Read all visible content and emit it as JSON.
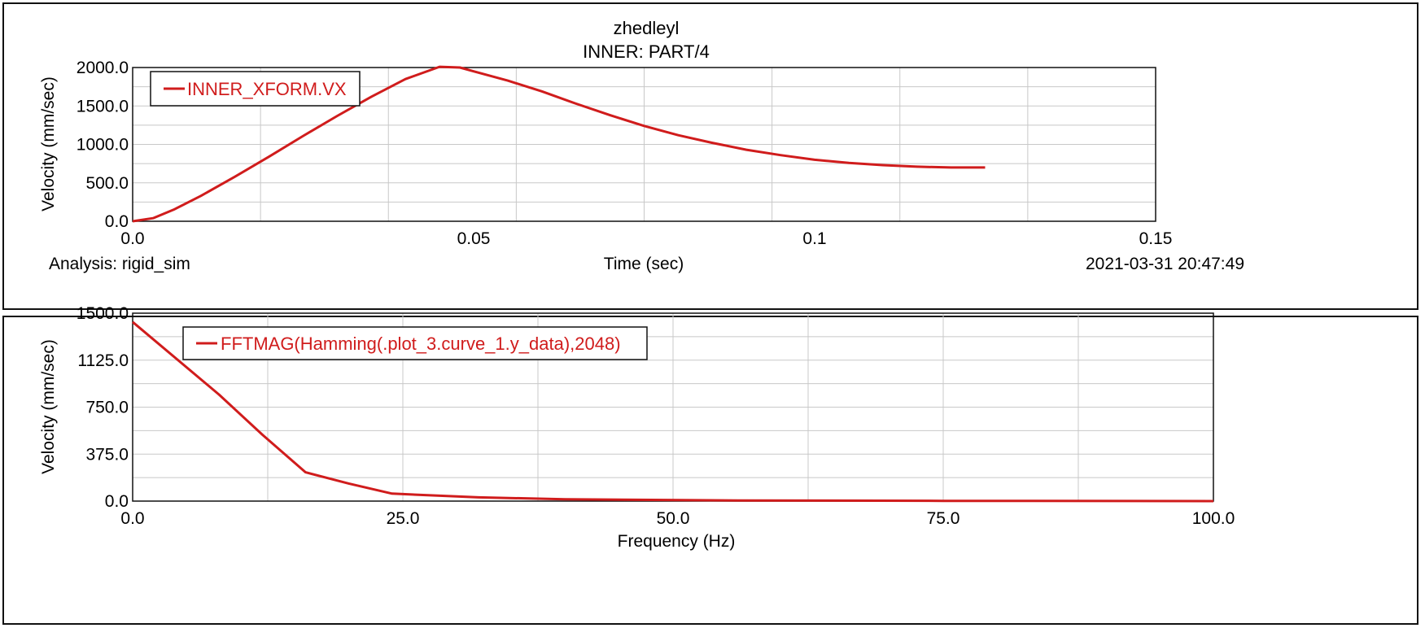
{
  "colors": {
    "curve": "#d01c1c",
    "grid": "#c8c8c8",
    "frame": "#111111",
    "background": "#ffffff"
  },
  "chart_data": [
    {
      "type": "line",
      "title": "zhedleyl",
      "subtitle": "INNER: PART/4",
      "xlabel": "Time (sec)",
      "ylabel": "Velocity (mm/sec)",
      "xlim": [
        0.0,
        0.15
      ],
      "ylim": [
        0.0,
        2000.0
      ],
      "x_ticks": [
        "0.0",
        "0.05",
        "0.1",
        "0.15"
      ],
      "y_ticks": [
        "0.0",
        "500.0",
        "1000.0",
        "1500.0",
        "2000.0"
      ],
      "grid": true,
      "legend_position": "top-left",
      "footer_left": "Analysis:  rigid_sim",
      "footer_right": "2021-03-31 20:47:49",
      "series": [
        {
          "name": "INNER_XFORM.VX",
          "x": [
            0.0,
            0.003,
            0.006,
            0.01,
            0.015,
            0.02,
            0.025,
            0.03,
            0.035,
            0.04,
            0.045,
            0.048,
            0.05,
            0.055,
            0.06,
            0.065,
            0.07,
            0.075,
            0.08,
            0.085,
            0.09,
            0.095,
            0.1,
            0.105,
            0.11,
            0.115,
            0.12,
            0.125
          ],
          "y": [
            0.0,
            40.0,
            150.0,
            330.0,
            580.0,
            840.0,
            1110.0,
            1370.0,
            1620.0,
            1850.0,
            2010.0,
            2000.0,
            1950.0,
            1830.0,
            1690.0,
            1530.0,
            1380.0,
            1240.0,
            1120.0,
            1020.0,
            930.0,
            860.0,
            800.0,
            760.0,
            730.0,
            710.0,
            700.0,
            700.0
          ]
        }
      ]
    },
    {
      "type": "line",
      "title": "",
      "xlabel": "Frequency (Hz)",
      "ylabel": "Velocity (mm/sec)",
      "xlim": [
        0.0,
        100.0
      ],
      "ylim": [
        0.0,
        1500.0
      ],
      "x_ticks": [
        "0.0",
        "25.0",
        "50.0",
        "75.0",
        "100.0"
      ],
      "y_ticks": [
        "0.0",
        "375.0",
        "750.0",
        "1125.0",
        "1500.0"
      ],
      "grid": true,
      "legend_position": "top-left",
      "series": [
        {
          "name": "FFTMAG(Hamming(.plot_3.curve_1.y_data),2048)",
          "x": [
            0.0,
            8.0,
            12.0,
            16.0,
            20.0,
            24.0,
            28.0,
            32.0,
            40.0,
            48.0,
            56.0,
            75.0,
            100.0
          ],
          "y": [
            1430.0,
            850.0,
            530.0,
            230.0,
            140.0,
            60.0,
            45.0,
            30.0,
            15.0,
            10.0,
            5.0,
            2.0,
            0.0
          ]
        }
      ]
    }
  ]
}
